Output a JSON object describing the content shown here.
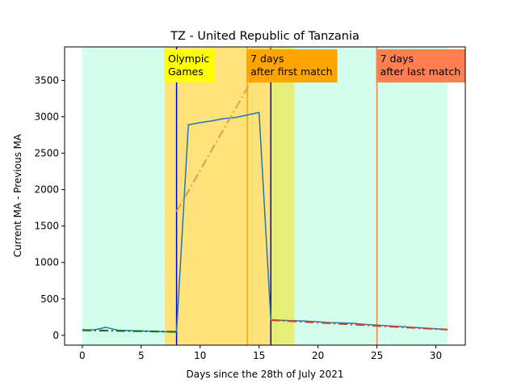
{
  "chart_data": {
    "type": "line",
    "title": "TZ - United Republic of Tanzania",
    "xlabel": "Days since the 28th of July 2021",
    "ylabel": "Current MA - Previous MA",
    "xlim": [
      -1.5,
      32.5
    ],
    "ylim": [
      -135,
      3960
    ],
    "xticks": [
      0,
      5,
      10,
      15,
      20,
      25,
      30
    ],
    "yticks": [
      0,
      500,
      1000,
      1500,
      2000,
      2500,
      3000,
      3500
    ],
    "grid": false,
    "colors": {
      "background_band": "#d3fdec",
      "olympics_band": "#ffe27a",
      "after_band": "#e6ee7a",
      "series_main": "#1f77b4",
      "trend_before": "#1e6e1e",
      "trend_during": "#d9a54f",
      "trend_after": "#d2422a",
      "vline_olympics": "#0000cc",
      "vline_first": "#ffa500",
      "vline_last": "#ff7f50"
    },
    "bands": [
      {
        "from": 0,
        "to": 31,
        "color": "#d3fdec"
      },
      {
        "from": 7,
        "to": 16,
        "color": "#ffe27a"
      },
      {
        "from": 16,
        "to": 18,
        "color": "#e6ee7a"
      }
    ],
    "vlines": [
      {
        "x": 8,
        "color": "#0000cc"
      },
      {
        "x": 16,
        "color": "#0000cc"
      },
      {
        "x": 14,
        "color": "#ffa500"
      },
      {
        "x": 25,
        "color": "#ff7f50"
      }
    ],
    "annotations": [
      {
        "x": 7,
        "line1": "Olympic",
        "line2": "Games",
        "bg": "#ffff00"
      },
      {
        "x": 14,
        "line1": "7 days",
        "line2": "after first match",
        "bg": "#ffa500"
      },
      {
        "x": 25,
        "line1": "7 days",
        "line2": "after last match",
        "bg": "#ff7f50"
      }
    ],
    "series": [
      {
        "color": "#1f77b4",
        "style": "solid",
        "x": [
          0,
          1,
          2,
          3,
          4,
          5,
          6,
          7,
          8,
          9,
          10,
          11,
          12,
          13,
          14,
          15,
          16,
          17,
          18,
          19,
          20,
          21,
          22,
          23,
          24,
          25,
          26,
          27,
          28,
          29,
          30,
          31
        ],
        "y": [
          75,
          75,
          110,
          70,
          65,
          60,
          55,
          50,
          50,
          2890,
          2920,
          2945,
          2975,
          2990,
          3025,
          3060,
          210,
          205,
          200,
          195,
          185,
          175,
          170,
          165,
          150,
          140,
          130,
          120,
          110,
          100,
          90,
          80
        ]
      },
      {
        "color": "#1e6e1e",
        "style": "dashdot",
        "x": [
          0,
          8
        ],
        "y": [
          70,
          48
        ]
      },
      {
        "color": "#d9a54f",
        "style": "dashdot",
        "x": [
          8,
          16
        ],
        "y": [
          1700,
          3960
        ]
      },
      {
        "color": "#d2422a",
        "style": "dashdot",
        "x": [
          16,
          31
        ],
        "y": [
          210,
          78
        ]
      }
    ]
  }
}
